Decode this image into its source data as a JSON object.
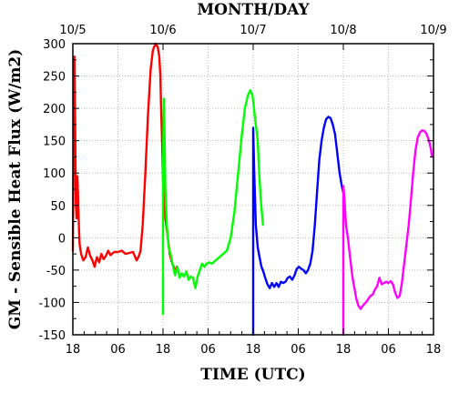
{
  "chart_data": {
    "type": "line",
    "ylabel": "GM - Sensible Heat Flux (W/m2)",
    "xlabel": "TIME (UTC)",
    "top_axis_label": "MONTH/DAY",
    "ylim": [
      -150,
      300
    ],
    "xlim_hours": [
      0,
      96
    ],
    "y_ticks": [
      -150,
      -100,
      -50,
      0,
      50,
      100,
      150,
      200,
      250,
      300
    ],
    "x_ticks_bottom": [
      {
        "hour": 0,
        "label": "18"
      },
      {
        "hour": 12,
        "label": "06"
      },
      {
        "hour": 24,
        "label": "18"
      },
      {
        "hour": 36,
        "label": "06"
      },
      {
        "hour": 48,
        "label": "18"
      },
      {
        "hour": 60,
        "label": "06"
      },
      {
        "hour": 72,
        "label": "18"
      },
      {
        "hour": 84,
        "label": "06"
      },
      {
        "hour": 96,
        "label": "18"
      }
    ],
    "x_ticks_top": [
      {
        "hour": 0,
        "label": "10/5"
      },
      {
        "hour": 24,
        "label": "10/6"
      },
      {
        "hour": 48,
        "label": "10/7"
      },
      {
        "hour": 72,
        "label": "10/8"
      },
      {
        "hour": 96,
        "label": "10/9"
      }
    ],
    "grid": true,
    "series": [
      {
        "color": "#ff0000",
        "points": [
          [
            0,
            -20
          ],
          [
            0.2,
            140
          ],
          [
            0.4,
            280
          ],
          [
            0.6,
            180
          ],
          [
            0.8,
            50
          ],
          [
            1,
            30
          ],
          [
            1.2,
            95
          ],
          [
            1.4,
            60
          ],
          [
            1.6,
            20
          ],
          [
            1.8,
            -10
          ],
          [
            2.2,
            -25
          ],
          [
            2.8,
            -35
          ],
          [
            3.4,
            -30
          ],
          [
            4,
            -15
          ],
          [
            4.6,
            -28
          ],
          [
            5.2,
            -35
          ],
          [
            5.8,
            -45
          ],
          [
            6.4,
            -30
          ],
          [
            7,
            -38
          ],
          [
            7.6,
            -25
          ],
          [
            8.2,
            -33
          ],
          [
            8.8,
            -28
          ],
          [
            9.4,
            -20
          ],
          [
            10,
            -27
          ],
          [
            11,
            -22
          ],
          [
            12,
            -22
          ],
          [
            13,
            -20
          ],
          [
            14,
            -25
          ],
          [
            16,
            -22
          ],
          [
            17,
            -35
          ],
          [
            17.6,
            -28
          ],
          [
            18,
            -20
          ],
          [
            18.6,
            20
          ],
          [
            19.3,
            100
          ],
          [
            20,
            190
          ],
          [
            20.7,
            260
          ],
          [
            21.3,
            290
          ],
          [
            22,
            300
          ],
          [
            22.6,
            295
          ],
          [
            23,
            280
          ],
          [
            23.3,
            250
          ],
          [
            23.5,
            200
          ],
          [
            23.8,
            140
          ],
          [
            24,
            90
          ],
          [
            24.6,
            30
          ],
          [
            25.2,
            5
          ],
          [
            25.8,
            -25
          ],
          [
            26.2,
            -35
          ],
          [
            26.8,
            -45
          ],
          [
            27.2,
            -55
          ],
          [
            27.6,
            -45
          ]
        ]
      },
      {
        "color": "#00ff00",
        "points": [
          [
            24,
            -118
          ],
          [
            24,
            90
          ],
          [
            24.2,
            215
          ],
          [
            24.4,
            170
          ],
          [
            24.6,
            80
          ],
          [
            25,
            20
          ],
          [
            25.5,
            -15
          ],
          [
            26,
            -25
          ],
          [
            26.6,
            -42
          ],
          [
            27.2,
            -58
          ],
          [
            27.8,
            -45
          ],
          [
            28.4,
            -62
          ],
          [
            29,
            -55
          ],
          [
            29.6,
            -60
          ],
          [
            30.2,
            -52
          ],
          [
            30.8,
            -65
          ],
          [
            31.4,
            -60
          ],
          [
            32,
            -62
          ],
          [
            32.6,
            -78
          ],
          [
            33.2,
            -60
          ],
          [
            33.8,
            -50
          ],
          [
            34.4,
            -40
          ],
          [
            35,
            -45
          ],
          [
            35.6,
            -40
          ],
          [
            36.2,
            -38
          ],
          [
            37,
            -40
          ],
          [
            38,
            -35
          ],
          [
            39,
            -30
          ],
          [
            40,
            -25
          ],
          [
            41,
            -20
          ],
          [
            42,
            0
          ],
          [
            43,
            40
          ],
          [
            44,
            100
          ],
          [
            45,
            160
          ],
          [
            45.8,
            200
          ],
          [
            46.6,
            220
          ],
          [
            47.2,
            228
          ],
          [
            47.8,
            220
          ],
          [
            48,
            212
          ],
          [
            48.4,
            190
          ],
          [
            48.8,
            170
          ],
          [
            49.2,
            150
          ],
          [
            49.6,
            100
          ],
          [
            50,
            60
          ],
          [
            50.6,
            20
          ]
        ]
      },
      {
        "color": "#0000ff",
        "points": [
          [
            48,
            -150
          ],
          [
            48,
            170
          ],
          [
            48.3,
            100
          ],
          [
            48.7,
            20
          ],
          [
            49.2,
            -15
          ],
          [
            49.7,
            -30
          ],
          [
            50.2,
            -45
          ],
          [
            50.7,
            -52
          ],
          [
            51.2,
            -62
          ],
          [
            51.8,
            -72
          ],
          [
            52.4,
            -78
          ],
          [
            53,
            -70
          ],
          [
            53.6,
            -76
          ],
          [
            54.2,
            -70
          ],
          [
            54.8,
            -76
          ],
          [
            55.4,
            -68
          ],
          [
            56,
            -70
          ],
          [
            56.6,
            -68
          ],
          [
            57.2,
            -62
          ],
          [
            57.8,
            -60
          ],
          [
            58.4,
            -65
          ],
          [
            59,
            -58
          ],
          [
            59.6,
            -48
          ],
          [
            60.2,
            -45
          ],
          [
            60.8,
            -48
          ],
          [
            61.4,
            -50
          ],
          [
            62,
            -55
          ],
          [
            62.6,
            -50
          ],
          [
            63.2,
            -40
          ],
          [
            63.8,
            -20
          ],
          [
            64.4,
            20
          ],
          [
            65,
            70
          ],
          [
            65.6,
            120
          ],
          [
            66.2,
            150
          ],
          [
            66.8,
            170
          ],
          [
            67.4,
            183
          ],
          [
            68,
            187
          ],
          [
            68.6,
            185
          ],
          [
            69.2,
            175
          ],
          [
            69.8,
            160
          ],
          [
            70.4,
            130
          ],
          [
            71,
            100
          ],
          [
            71.6,
            80
          ],
          [
            72,
            70
          ]
        ]
      },
      {
        "color": "#ff00ff",
        "points": [
          [
            72,
            -150
          ],
          [
            72,
            80
          ],
          [
            72.3,
            60
          ],
          [
            72.7,
            20
          ],
          [
            73.2,
            0
          ],
          [
            73.8,
            -30
          ],
          [
            74.4,
            -60
          ],
          [
            75,
            -80
          ],
          [
            75.5,
            -95
          ],
          [
            76,
            -105
          ],
          [
            76.6,
            -110
          ],
          [
            77.2,
            -105
          ],
          [
            78,
            -100
          ],
          [
            78.6,
            -95
          ],
          [
            79.2,
            -90
          ],
          [
            79.8,
            -88
          ],
          [
            80.4,
            -80
          ],
          [
            81,
            -75
          ],
          [
            81.6,
            -62
          ],
          [
            82.2,
            -72
          ],
          [
            82.8,
            -70
          ],
          [
            83.4,
            -68
          ],
          [
            84,
            -70
          ],
          [
            84.6,
            -67
          ],
          [
            85.2,
            -72
          ],
          [
            85.8,
            -85
          ],
          [
            86.4,
            -93
          ],
          [
            87,
            -90
          ],
          [
            87.6,
            -70
          ],
          [
            88.2,
            -40
          ],
          [
            88.8,
            -10
          ],
          [
            89.4,
            20
          ],
          [
            90,
            60
          ],
          [
            90.6,
            100
          ],
          [
            91.2,
            135
          ],
          [
            91.8,
            155
          ],
          [
            92.4,
            163
          ],
          [
            93,
            166
          ],
          [
            93.6,
            165
          ],
          [
            94.2,
            160
          ],
          [
            94.8,
            150
          ],
          [
            95.3,
            138
          ],
          [
            95.6,
            125
          ]
        ]
      }
    ]
  }
}
